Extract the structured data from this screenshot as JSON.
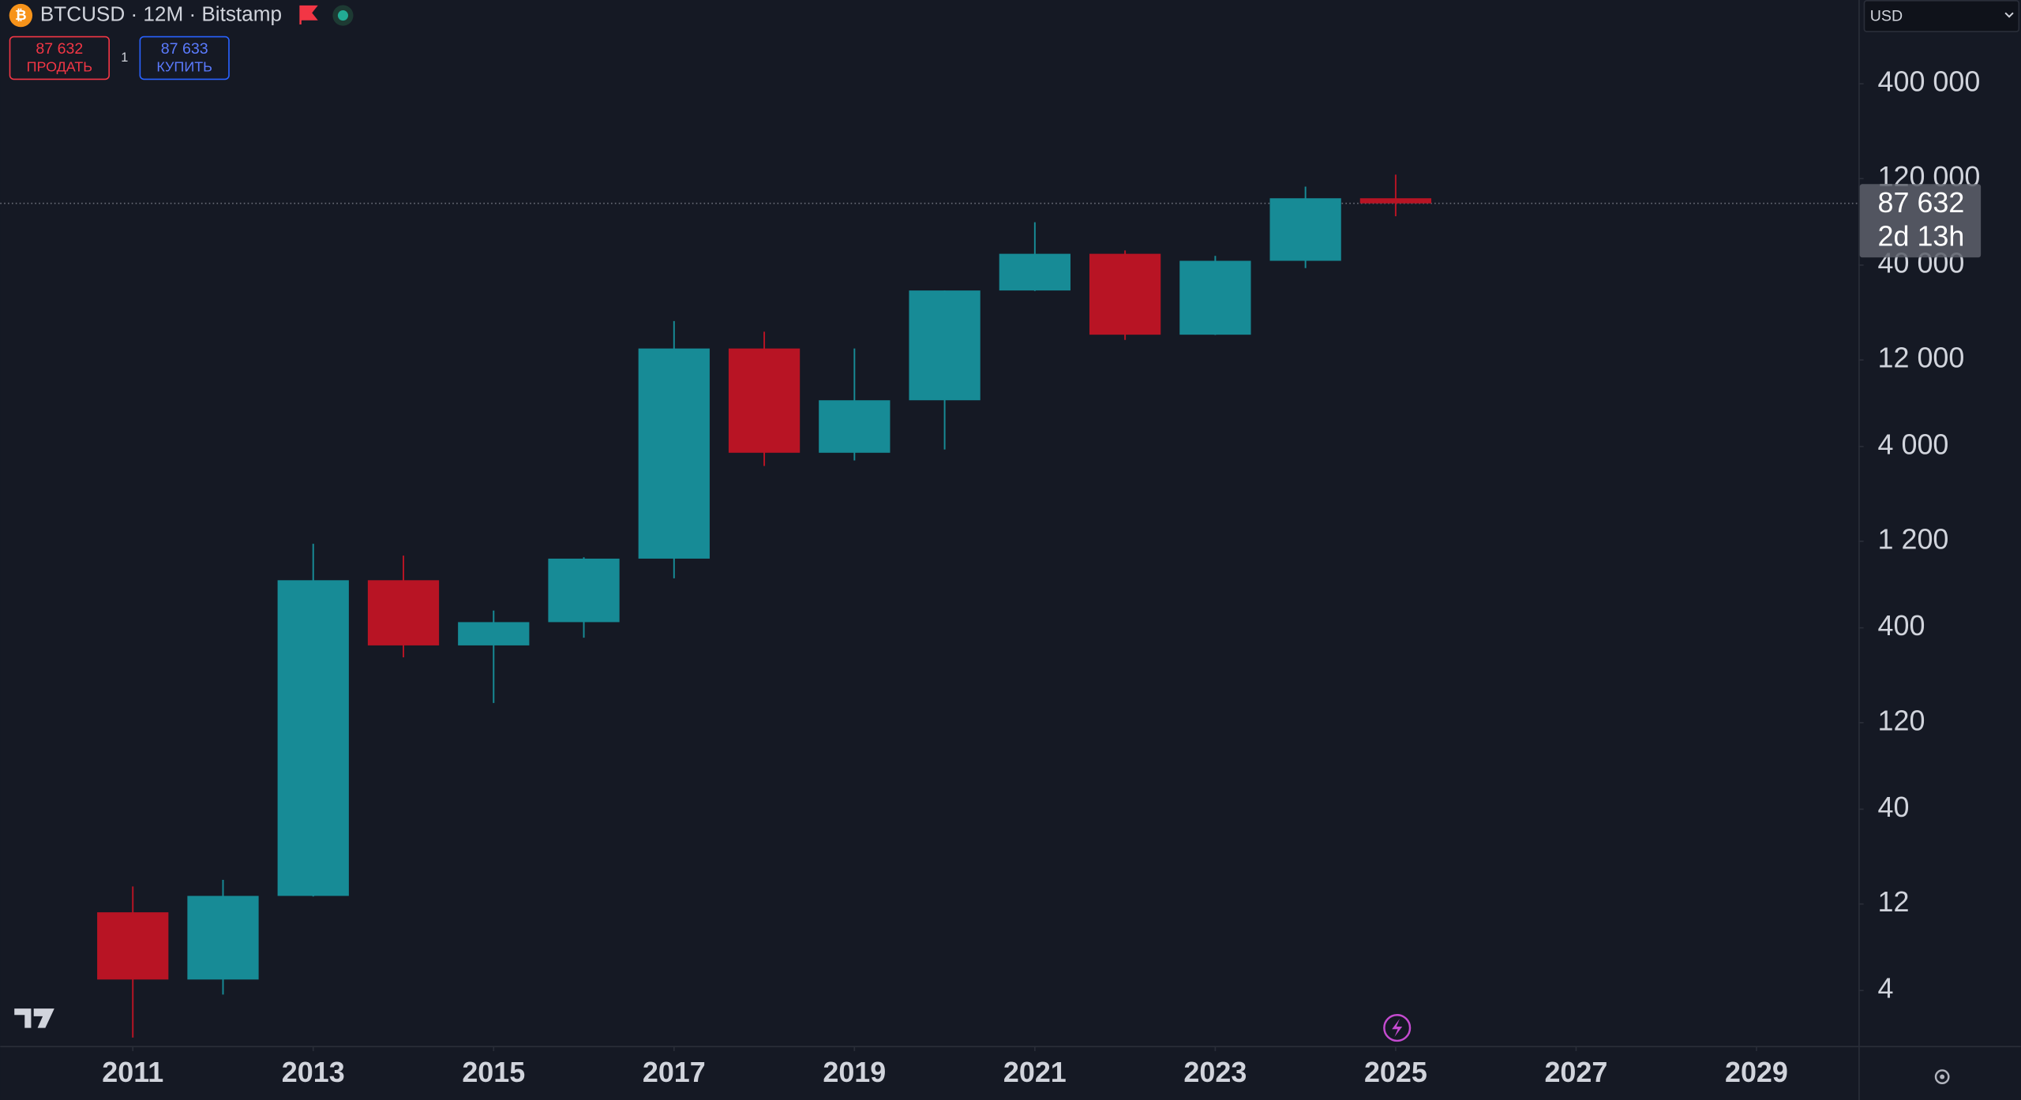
{
  "chart_data": {
    "type": "candlestick",
    "title": "BTCUSD · 12M · Bitstamp",
    "x": [
      2011,
      2012,
      2013,
      2014,
      2015,
      2016,
      2017,
      2018,
      2019,
      2020,
      2021,
      2022,
      2023,
      2024,
      2025
    ],
    "open": [
      10.8,
      4.6,
      13.3,
      732,
      320,
      430,
      963,
      13880,
      3693,
      7193,
      28990,
      46200,
      16540,
      42260,
      93500
    ],
    "high": [
      15,
      16.3,
      1163,
      1000,
      498,
      980,
      19666,
      17178,
      13880,
      29000,
      69000,
      48200,
      45000,
      108400,
      126200
    ],
    "low": [
      2.2,
      3.8,
      13.2,
      275,
      154,
      353,
      750,
      3122,
      3350,
      3850,
      28800,
      15476,
      16490,
      38500,
      74400
    ],
    "close": [
      4.6,
      13.3,
      732,
      320,
      430,
      963,
      13880,
      3693,
      7193,
      28990,
      46200,
      16540,
      42260,
      93500,
      87632
    ],
    "up_color": "#178b96",
    "down_color": "#b81424",
    "log_scale": true,
    "xlim": [
      2009.53,
      2030.13
    ],
    "xticks": [
      2011,
      2013,
      2015,
      2017,
      2019,
      2021,
      2023,
      2025,
      2027,
      2029
    ],
    "ylim": [
      1.98,
      1159000
    ],
    "yticks": [
      4,
      12,
      40,
      120,
      400,
      {
        "value": 1200,
        "label": "1 200"
      },
      {
        "value": 4000,
        "label": "4 000"
      },
      {
        "value": 12000,
        "label": "12 000"
      },
      {
        "value": 40000,
        "label": "40 000"
      },
      {
        "value": 120000,
        "label": "120 000"
      },
      {
        "value": 400000,
        "label": "400 000"
      }
    ],
    "last_price": {
      "value": 87632,
      "label": "87 632"
    },
    "countdown": "2d 13h",
    "currency": "USD"
  },
  "trade": {
    "sell_price": "87 632",
    "sell_label": "ПРОДАТЬ",
    "quantity": "1",
    "buy_price": "87 633",
    "buy_label": "КУПИТЬ"
  }
}
